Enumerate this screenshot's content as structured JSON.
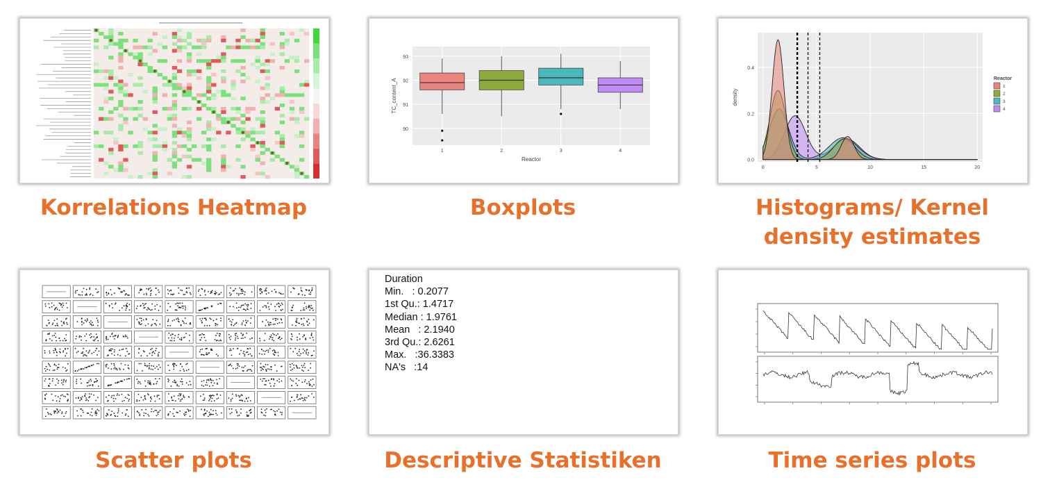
{
  "colors": {
    "caption": "#e8702a",
    "reactor": [
      "#e9857c",
      "#8cab3a",
      "#4bb8bd",
      "#c08bf2"
    ],
    "heat_pos": "#7ce07c",
    "heat_neg": "#e05a5a"
  },
  "panels": [
    {
      "id": "heatmap",
      "caption": "Korrelations Heatmap"
    },
    {
      "id": "boxplots",
      "caption": "Boxplots"
    },
    {
      "id": "kde",
      "caption": "Histograms/ Kernel density estimates"
    },
    {
      "id": "scatter",
      "caption": "Scatter plots"
    },
    {
      "id": "stats",
      "caption": "Descriptive Statistiken"
    },
    {
      "id": "timeseries",
      "caption": "Time series plots"
    }
  ],
  "stats": {
    "title": "Duration",
    "rows": [
      "Min.   : 0.2077",
      "1st Qu.: 1.4717",
      "Median : 1.9761",
      "Mean   : 2.1940",
      "3rd Qu.: 2.6261",
      "Max.   :36.3383",
      "NA's   :14"
    ]
  },
  "chart_data": [
    {
      "type": "heatmap",
      "title": "",
      "description_note": "",
      "diagonal": 1.0
    },
    {
      "type": "box",
      "xlabel": "Reactor",
      "ylabel": "TC_content_A",
      "categories": [
        "1",
        "2",
        "3",
        "4"
      ],
      "yticks": [
        90,
        91,
        92,
        93
      ],
      "ylim": [
        89.3,
        93.4
      ],
      "boxes": [
        {
          "q1": 91.6,
          "median": 91.9,
          "q3": 92.3,
          "lo": 90.6,
          "hi": 92.9,
          "outliers": [
            89.9,
            89.5
          ]
        },
        {
          "q1": 91.6,
          "median": 92.0,
          "q3": 92.4,
          "lo": 90.5,
          "hi": 93.0,
          "outliers": []
        },
        {
          "q1": 91.8,
          "median": 92.1,
          "q3": 92.5,
          "lo": 90.8,
          "hi": 93.1,
          "outliers": [
            90.6
          ]
        },
        {
          "q1": 91.5,
          "median": 91.8,
          "q3": 92.1,
          "lo": 90.8,
          "hi": 92.8,
          "outliers": []
        }
      ]
    },
    {
      "type": "area",
      "xlabel": "",
      "ylabel": "density",
      "legend_title": "Reactor",
      "legend_position": "right",
      "xticks": [
        0,
        5,
        10,
        15,
        20
      ],
      "yticks": [
        0.0,
        0.2,
        0.4
      ],
      "xlim": [
        -0.5,
        20.5
      ],
      "ylim": [
        -0.01,
        0.55
      ],
      "vlines": [
        3.2,
        4.2,
        5.3
      ],
      "series": [
        {
          "name": "1",
          "peaks": [
            [
              1.4,
              0.52,
              0.55
            ],
            [
              7.9,
              0.1,
              0.6
            ]
          ]
        },
        {
          "name": "2",
          "peaks": [
            [
              1.4,
              0.3,
              0.75
            ],
            [
              7.6,
              0.09,
              1.0
            ]
          ]
        },
        {
          "name": "3",
          "peaks": [
            [
              1.5,
              0.22,
              0.9
            ],
            [
              7.5,
              0.095,
              1.3
            ]
          ]
        },
        {
          "name": "4",
          "peaks": [
            [
              3.0,
              0.19,
              1.0
            ],
            [
              7.8,
              0.09,
              1.2
            ]
          ]
        }
      ]
    },
    {
      "type": "scatter",
      "title": "",
      "grid": [
        9,
        9
      ]
    },
    {
      "type": "line",
      "title": "",
      "panels": 2
    }
  ]
}
